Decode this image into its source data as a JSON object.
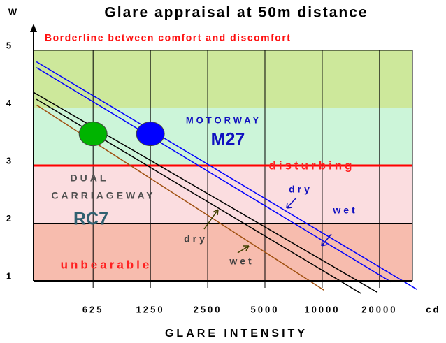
{
  "chart_data": {
    "type": "line",
    "title": "Glare appraisal at 50m distance",
    "y_label": "W",
    "x_label": "GLARE INTENSITY",
    "x_unit": "cd",
    "x_scale": "log",
    "xlim": [
      304,
      29800
    ],
    "xticks": [
      625,
      1250,
      2500,
      5000,
      10000,
      20000
    ],
    "ylim": [
      1,
      5
    ],
    "yticks": [
      1,
      2,
      3,
      4,
      5
    ],
    "grid": true,
    "bands": [
      {
        "from": 1,
        "to": 2,
        "color": "#f7bcae"
      },
      {
        "from": 2,
        "to": 3,
        "color": "#fbdde0"
      },
      {
        "from": 3,
        "to": 4,
        "color": "#ccf5d9"
      },
      {
        "from": 4,
        "to": 5,
        "color": "#cde89b"
      }
    ],
    "threshold": {
      "value": 3,
      "color": "#ff0000"
    },
    "series": [
      {
        "color": "#0000ff",
        "x": [
          315,
          31500
        ],
        "values": [
          4.8,
          0.85
        ]
      },
      {
        "color": "#0000ff",
        "x": [
          315,
          23000
        ],
        "values": [
          4.7,
          0.98
        ]
      },
      {
        "color": "#000000",
        "x": [
          304,
          19500
        ],
        "values": [
          4.27,
          0.8
        ]
      },
      {
        "color": "#000000",
        "x": [
          315,
          16000
        ],
        "values": [
          4.15,
          0.78
        ]
      },
      {
        "color": "#a05010",
        "x": [
          315,
          10200
        ],
        "values": [
          4.05,
          0.84
        ]
      }
    ],
    "points": [
      {
        "x": 625,
        "y": 3.55,
        "color": "#00b400"
      },
      {
        "x": 1250,
        "y": 3.55,
        "color": "#0000ff"
      }
    ],
    "annotations": [
      "Borderline between comfort and discomfort",
      "MOTORWAY",
      "M27",
      "DUAL",
      "CARRIAGEWAY",
      "RC7",
      "disturbing",
      "unbearable",
      "dry",
      "wet",
      "dry",
      "wet"
    ]
  }
}
